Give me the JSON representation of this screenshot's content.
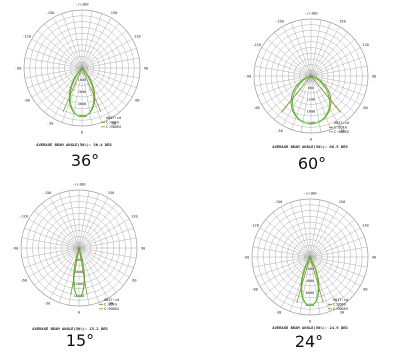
{
  "chart_data": [
    {
      "type": "polar",
      "beam_angle_label": "36°",
      "angle_ticks": [
        "-/+180",
        "150",
        "120",
        "90",
        "60",
        "30",
        "0",
        "-30",
        "-60",
        "-90",
        "-120",
        "-150"
      ],
      "radial_labels": [
        "1000",
        "2000",
        "3000",
        "4000"
      ],
      "legend": {
        "title": "UNIT:cd",
        "entries": [
          "C:0DEG",
          "C:90DEG"
        ]
      },
      "footer": "AVERAGE BEAM ANGLE(50%): 36.4 DEG",
      "series": [
        {
          "half_angle_deg": 18,
          "max_cd": 4000
        }
      ]
    },
    {
      "type": "polar",
      "beam_angle_label": "60°",
      "angle_ticks": [
        "-/+180",
        "150",
        "120",
        "90",
        "60",
        "30",
        "0",
        "-30",
        "-60",
        "-90",
        "-120",
        "-150"
      ],
      "radial_labels": [
        "600",
        "1200",
        "1800",
        "2400"
      ],
      "legend": {
        "title": "UNIT:cd",
        "entries": [
          "C:0DEG",
          "C:90DEG"
        ]
      },
      "footer": "AVERAGE BEAM ANGLE(50%): 60.5 DEG",
      "series": [
        {
          "half_angle_deg": 30,
          "max_cd": 2400
        }
      ]
    },
    {
      "type": "polar",
      "beam_angle_label": "15°",
      "angle_ticks": [
        "-/+180",
        "150",
        "120",
        "90",
        "60",
        "30",
        "0",
        "-30",
        "-60",
        "-90",
        "-120",
        "-150"
      ],
      "radial_labels": [
        "4000",
        "8000",
        "12000",
        "16000"
      ],
      "legend": {
        "title": "UNIT:cd",
        "entries": [
          "C:0DEG",
          "C:90DEG"
        ]
      },
      "footer": "AVERAGE BEAM ANGLE(50%): 15.2 DEG",
      "series": [
        {
          "half_angle_deg": 7.6,
          "max_cd": 16000
        }
      ]
    },
    {
      "type": "polar",
      "beam_angle_label": "24°",
      "angle_ticks": [
        "-/+180",
        "150",
        "120",
        "90",
        "60",
        "30",
        "0",
        "-30",
        "-60",
        "-90",
        "-120",
        "-150"
      ],
      "radial_labels": [
        "2000",
        "4000",
        "6000",
        "8000"
      ],
      "legend": {
        "title": "UNIT:cd",
        "entries": [
          "C:0DEG",
          "C:90DEG"
        ]
      },
      "footer": "AVERAGE BEAM ANGLE(50%): 24.9 DEG",
      "series": [
        {
          "half_angle_deg": 12.4,
          "max_cd": 8000
        }
      ]
    }
  ],
  "colors": {
    "grid": "#9a9a9a",
    "c0": "#7a8a2a",
    "c90": "#55cc33",
    "text": "#222222"
  }
}
